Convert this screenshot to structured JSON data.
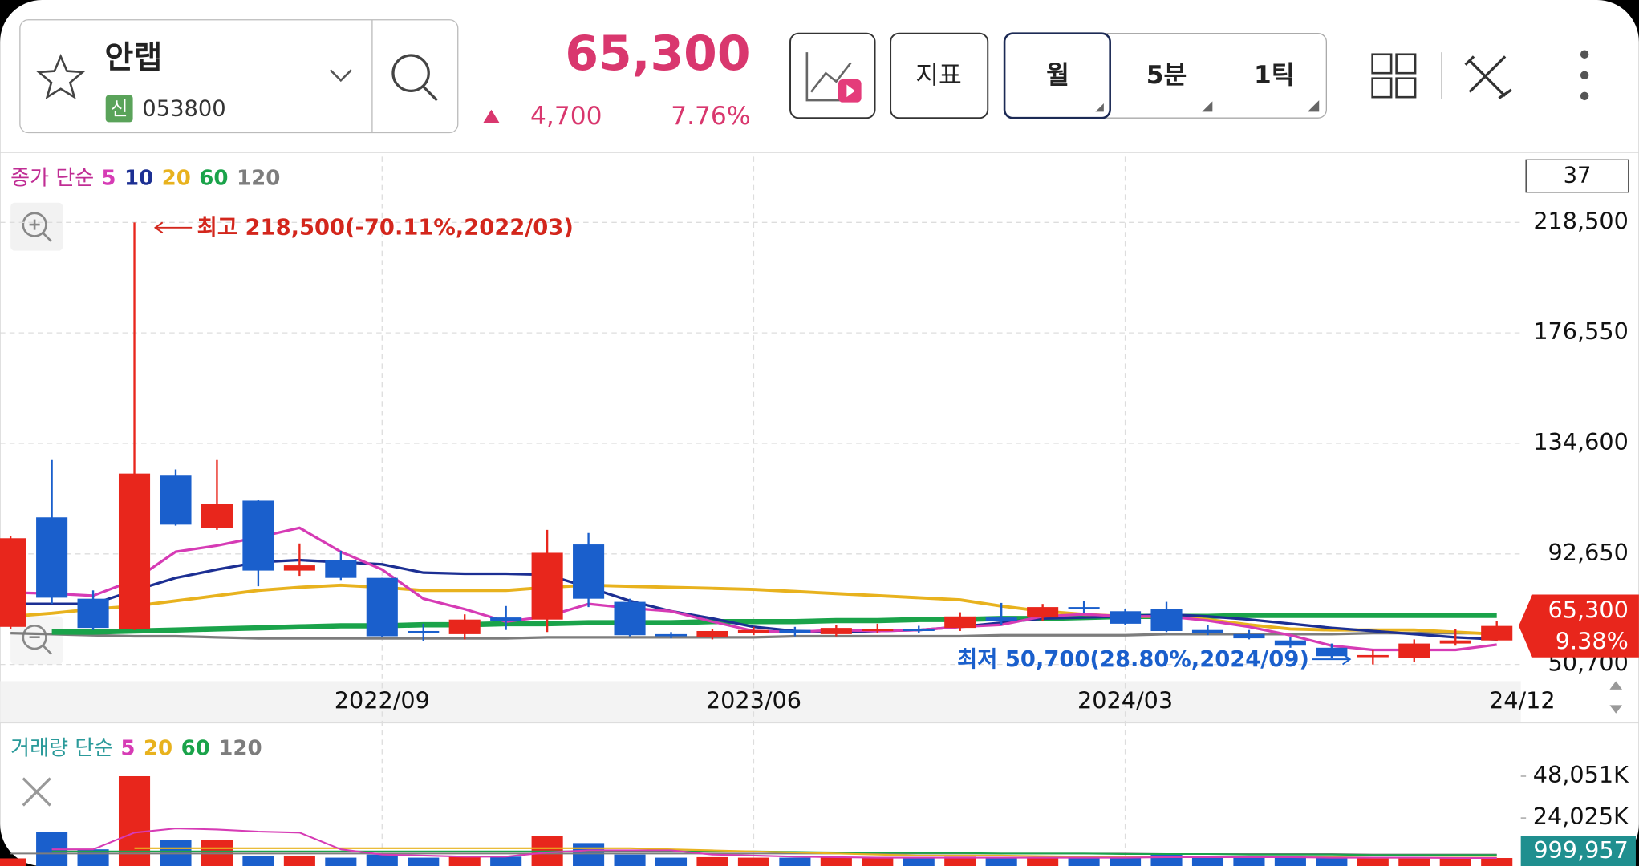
{
  "header": {
    "name": "안랩",
    "badge": "신",
    "code": "053800",
    "price": "65,300",
    "change": "4,700",
    "change_pct": "7.76%"
  },
  "toolbar": {
    "indicator": "지표",
    "periods": [
      "월",
      "5분",
      "1틱"
    ]
  },
  "chart_data": [
    {
      "type": "candlestick",
      "legend_prefix": "종가 단순",
      "count_box": "37",
      "categories": [
        null,
        null,
        null,
        null,
        null,
        null,
        null,
        null,
        null,
        "2022/09",
        null,
        null,
        null,
        null,
        null,
        null,
        null,
        null,
        "2023/06",
        null,
        null,
        null,
        null,
        null,
        null,
        null,
        null,
        "2024/03",
        null,
        null,
        null,
        null,
        null,
        null,
        null,
        null,
        "24/12"
      ],
      "open": [
        64950,
        106510,
        75640,
        64160,
        122340,
        102550,
        112840,
        86320,
        90280,
        83550,
        63370,
        62180,
        68510,
        67720,
        96220,
        74450,
        62180,
        60990,
        62570,
        63760,
        62180,
        63370,
        64160,
        64550,
        68510,
        68510,
        72470,
        70890,
        71680,
        63760,
        62180,
        59800,
        57030,
        53470,
        53070,
        58620,
        59800
      ],
      "high": [
        99380,
        128280,
        78800,
        218500,
        124710,
        128280,
        113240,
        96610,
        93840,
        83550,
        66140,
        69700,
        72860,
        101760,
        100570,
        75640,
        62970,
        64160,
        64950,
        64950,
        65740,
        66140,
        65340,
        70490,
        74050,
        73660,
        74840,
        71680,
        74450,
        65740,
        63760,
        60990,
        58620,
        56240,
        60200,
        64160,
        67320
      ],
      "low": [
        64000,
        73660,
        63760,
        63760,
        103340,
        101760,
        80390,
        84340,
        82760,
        60990,
        59410,
        60200,
        63760,
        62970,
        72470,
        61390,
        60600,
        60200,
        61780,
        61390,
        61390,
        62570,
        62570,
        63370,
        65740,
        67320,
        70090,
        65740,
        62970,
        61780,
        60200,
        57030,
        53070,
        50700,
        51490,
        57820,
        59400
      ],
      "close": [
        98590,
        76030,
        64550,
        123130,
        103740,
        111650,
        86320,
        88300,
        83550,
        61390,
        62570,
        67720,
        67320,
        93050,
        75640,
        61780,
        61390,
        63370,
        63760,
        62570,
        64550,
        64160,
        63370,
        68910,
        67320,
        72470,
        71680,
        66140,
        63370,
        62570,
        60600,
        57820,
        53870,
        54260,
        58620,
        59800,
        65300
      ],
      "series": [
        {
          "name": "5",
          "color": "#d63bb5",
          "values": [
            78010,
            77610,
            76820,
            82760,
            93450,
            95820,
            98990,
            102550,
            93450,
            86720,
            75640,
            71680,
            66930,
            68910,
            73660,
            72070,
            70890,
            66930,
            63370,
            62970,
            63760,
            63370,
            63760,
            64950,
            65740,
            68910,
            69700,
            68910,
            68910,
            67320,
            64950,
            61780,
            57820,
            56240,
            56240,
            56240,
            58220
          ]
        },
        {
          "name": "10",
          "color": "#1c2f93",
          "values": [
            73660,
            73660,
            73660,
            78800,
            83550,
            86720,
            89490,
            90280,
            89490,
            88700,
            85530,
            85130,
            85130,
            84740,
            79990,
            74840,
            70890,
            68120,
            64950,
            63370,
            62970,
            63370,
            63760,
            64950,
            66530,
            68120,
            68510,
            68910,
            69700,
            68910,
            67720,
            66140,
            64550,
            63370,
            62180,
            60990,
            60200
          ]
        },
        {
          "name": "20",
          "color": "#e8b21e",
          "values": [
            68910,
            70090,
            71680,
            72860,
            74840,
            76820,
            78800,
            79990,
            80780,
            79990,
            78800,
            78800,
            78800,
            79990,
            80780,
            80390,
            79990,
            79590,
            79200,
            78410,
            77610,
            76820,
            76030,
            75240,
            72860,
            70890,
            69700,
            68910,
            68910,
            67720,
            65740,
            64160,
            63760,
            63760,
            63760,
            62970,
            62180
          ]
        },
        {
          "name": "60",
          "color": "#1aa34a",
          "values": [
            null,
            62970,
            62970,
            63370,
            63760,
            64160,
            64550,
            64950,
            65340,
            65340,
            65740,
            65740,
            66140,
            66140,
            66530,
            66530,
            66530,
            66930,
            66930,
            66930,
            67320,
            67320,
            67720,
            67720,
            68120,
            68120,
            68510,
            68910,
            68910,
            68910,
            69300,
            69300,
            69300,
            69300,
            69300,
            69300,
            69300
          ]
        },
        {
          "name": "120",
          "color": "#7d7d7d",
          "values": [
            62570,
            62180,
            61780,
            61390,
            61390,
            61000,
            60600,
            60600,
            60600,
            60600,
            60600,
            60600,
            60600,
            60990,
            60990,
            60990,
            60990,
            60990,
            60990,
            61390,
            61390,
            61390,
            61390,
            61390,
            61780,
            61780,
            61780,
            61780,
            62180,
            62180,
            62180,
            62180,
            62180,
            62570,
            62570,
            62570,
            62570
          ]
        }
      ],
      "ylim": [
        44370,
        243430
      ],
      "yticks": [
        {
          "value": 218500,
          "label": "218,500"
        },
        {
          "value": 176550,
          "label": "176,550"
        },
        {
          "value": 134600,
          "label": "134,600"
        },
        {
          "value": 92650,
          "label": "92,650"
        },
        {
          "value": 50700,
          "label": "50,700"
        }
      ],
      "grid": true,
      "annotations": [
        "최고 218,500(-70.11%,2022/03)",
        "최저 50,700(28.80%,2024/09)"
      ],
      "price_tag": [
        "65,300",
        "9.38%"
      ]
    },
    {
      "type": "volume",
      "legend_prefix": "거래량 단순",
      "values": [
        800,
        16220,
        6000,
        48051,
        11400,
        11400,
        2400,
        2400,
        1200,
        3000,
        1200,
        1800,
        1800,
        13800,
        9600,
        3000,
        1200,
        1500,
        1200,
        1200,
        1500,
        1000,
        1000,
        1800,
        1000,
        1500,
        1000,
        1500,
        3000,
        1200,
        1200,
        1500,
        1200,
        1000,
        1200,
        1000,
        1000
      ],
      "series": [
        {
          "name": "5",
          "color": "#d63bb5",
          "values": [
            null,
            6000,
            6000,
            15620,
            18020,
            17420,
            16220,
            15620,
            6000,
            3000,
            2400,
            1800,
            1800,
            4200,
            5400,
            5400,
            5400,
            3000,
            2400,
            1800,
            1500,
            1200,
            1200,
            1200,
            1200,
            1200,
            1200,
            1200,
            1500,
            1500,
            1500,
            1500,
            1200,
            1200,
            1200,
            1000,
            1000
          ]
        },
        {
          "name": "20",
          "color": "#e8b21e",
          "values": [
            null,
            null,
            null,
            6600,
            6600,
            6600,
            6600,
            6600,
            6600,
            6600,
            6600,
            6600,
            6600,
            6600,
            6600,
            6600,
            6000,
            5400,
            4800,
            4200,
            3600,
            3000,
            2400,
            2400,
            2400,
            2100,
            1800,
            1800,
            1800,
            1500,
            1500,
            1500,
            1500,
            1200,
            1200,
            1200,
            1200
          ]
        },
        {
          "name": "60",
          "color": "#1aa34a",
          "values": [
            null,
            4800,
            4800,
            4800,
            4800,
            4800,
            4800,
            4800,
            4800,
            4800,
            4800,
            4800,
            4800,
            4800,
            4800,
            4800,
            4800,
            4800,
            4800,
            4500,
            4200,
            4200,
            3900,
            3900,
            3600,
            3600,
            3600,
            3300,
            3300,
            3300,
            3000,
            3000,
            3000,
            2700,
            2700,
            2700,
            2700
          ]
        },
        {
          "name": "120",
          "color": "#7d7d7d",
          "values": [
            3600,
            3600,
            3600,
            3600,
            3600,
            3600,
            3600,
            3600,
            3600,
            3600,
            3600,
            3600,
            3600,
            3600,
            3600,
            3600,
            3600,
            3600,
            3600,
            3600,
            3600,
            3600,
            3600,
            3600,
            3600,
            3600,
            3600,
            3600,
            3300,
            3300,
            3300,
            3300,
            3300,
            3000,
            3000,
            3000,
            3000
          ]
        }
      ],
      "ylim": [
        0,
        73900
      ],
      "yticks": [
        {
          "value": 48051,
          "label": "48,051K"
        },
        {
          "value": 24025,
          "label": "24,025K"
        }
      ],
      "current_label": "999,957"
    }
  ]
}
